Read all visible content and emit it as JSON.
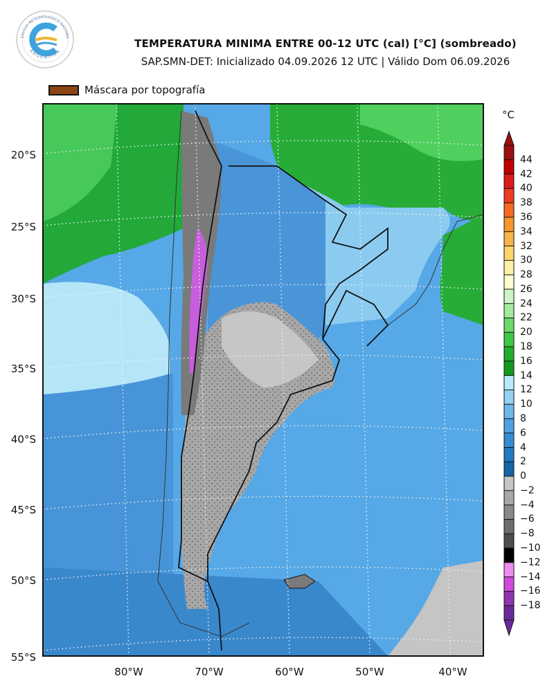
{
  "header": {
    "title": "TEMPERATURA MINIMA ENTRE 00-12 UTC (cal) [°C] (sombreado)",
    "subtitle": "SAP.SMN-DET: Inicializado 04.09.2026 12 UTC | Válido Dom 06.09.2026",
    "logo_top_text": "SERVICIO METEOROLÓGICO NACIONAL",
    "logo_bottom_text": "ARGENTINA"
  },
  "mask_legend": {
    "label": "Máscara por topografía",
    "color": "#8b4513"
  },
  "map": {
    "lat_labels": [
      "20°S",
      "25°S",
      "30°S",
      "35°S",
      "40°S",
      "45°S",
      "50°S",
      "55°S"
    ],
    "lon_labels": [
      "80°W",
      "70°W",
      "60°W",
      "50°W",
      "40°W"
    ]
  },
  "colorbar": {
    "unit": "°C",
    "labels": [
      "44",
      "42",
      "40",
      "38",
      "36",
      "34",
      "32",
      "30",
      "28",
      "26",
      "24",
      "22",
      "20",
      "18",
      "16",
      "14",
      "12",
      "10",
      "8",
      "6",
      "4",
      "2",
      "0",
      "−2",
      "−4",
      "−6",
      "−8",
      "−10",
      "−12",
      "−14",
      "−16",
      "−18"
    ],
    "colors": [
      "#9b0f0f",
      "#c00000",
      "#dd1b1b",
      "#ef3b22",
      "#f46a25",
      "#f7962b",
      "#f8b44a",
      "#fcd56b",
      "#fdf0a8",
      "#fffdd0",
      "#cdf5c6",
      "#a5eaa0",
      "#6bd86a",
      "#3fc845",
      "#24ad2d",
      "#129a1e",
      "#b8ecfa",
      "#94d2f2",
      "#6eb8ea",
      "#4fa2e1",
      "#378dd4",
      "#2479c0",
      "#1564a8",
      "#c6c6c6",
      "#a8a8a8",
      "#8a8a8a",
      "#6e6e6e",
      "#4e4e4e",
      "#000000",
      "#ec8ef0",
      "#d24ad9",
      "#8e35b2",
      "#6b2a9a"
    ],
    "top_color": "#9b0f0f",
    "bottom_color": "#6b2a9a"
  }
}
